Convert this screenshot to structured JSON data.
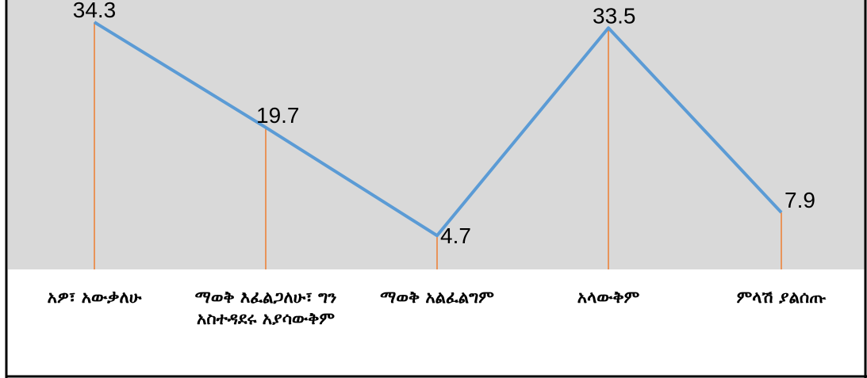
{
  "chart_data": {
    "type": "line",
    "categories": [
      "አዎ፣ አውቃለሁ",
      "ማወቅ እፈልጋለሁ፣ ግን አስተዳደሩ አያሳውቅም",
      "ማወቅ አልፈልግም",
      "አላውቅም",
      "ምላሽ ያልሰጡ"
    ],
    "values": [
      34.3,
      19.7,
      4.7,
      33.5,
      7.9
    ],
    "data_labels": [
      "34.3",
      "19.7",
      "4.7",
      "33.5",
      "7.9"
    ],
    "ylim": [
      0,
      36.5
    ],
    "grid": false,
    "legend": "none",
    "colors": {
      "plot_background": "#d9d9d9",
      "line": "#5b9bd5",
      "drop_lines": "#ed7d31",
      "frame": "#000000"
    }
  }
}
